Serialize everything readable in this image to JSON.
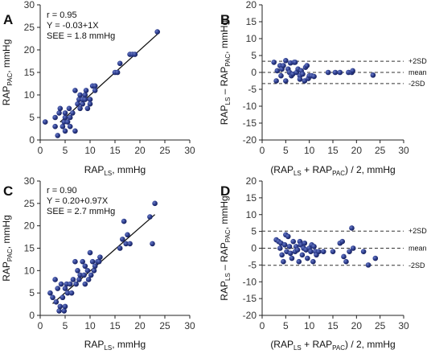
{
  "chart_data": [
    {
      "panel": "A",
      "type": "scatter",
      "xlim": [
        0,
        30
      ],
      "ylim": [
        0,
        30
      ],
      "xticks": [
        0,
        5,
        10,
        15,
        20,
        25,
        30
      ],
      "yticks": [
        0,
        5,
        10,
        15,
        20,
        25,
        30
      ],
      "xlabel": {
        "main": "RAP",
        "sub": "LS",
        "tail": ", mmHg"
      },
      "ylabel": {
        "main": "RAP",
        "sub": "PAC",
        "tail": ", mmHg"
      },
      "annotations": [
        "r = 0.95",
        "Y = -0.03+1X",
        "SEE = 1.8 mmHg"
      ],
      "regression": {
        "intercept": -0.03,
        "slope": 1.0,
        "x_range": [
          4,
          23.5
        ]
      },
      "grid": false,
      "points": [
        [
          1,
          4
        ],
        [
          3,
          3
        ],
        [
          3,
          5
        ],
        [
          3.5,
          1
        ],
        [
          3.8,
          6
        ],
        [
          4,
          7
        ],
        [
          4.5,
          3
        ],
        [
          4.8,
          4
        ],
        [
          5,
          2
        ],
        [
          5,
          5
        ],
        [
          5,
          6
        ],
        [
          5.5,
          4
        ],
        [
          5.8,
          7
        ],
        [
          6,
          3
        ],
        [
          6,
          5
        ],
        [
          6.5,
          6
        ],
        [
          7,
          2
        ],
        [
          7,
          11
        ],
        [
          7.5,
          8
        ],
        [
          7.8,
          9
        ],
        [
          8,
          7
        ],
        [
          8,
          10
        ],
        [
          8.5,
          8
        ],
        [
          8.5,
          9
        ],
        [
          9,
          9
        ],
        [
          9,
          10
        ],
        [
          9.2,
          11
        ],
        [
          9.5,
          7
        ],
        [
          10,
          9
        ],
        [
          10,
          8
        ],
        [
          10.5,
          12
        ],
        [
          11,
          12
        ],
        [
          11,
          11
        ],
        [
          15,
          15
        ],
        [
          15.5,
          15
        ],
        [
          16,
          17
        ],
        [
          18,
          19
        ],
        [
          18.5,
          19
        ],
        [
          19,
          19
        ],
        [
          23.5,
          24
        ]
      ]
    },
    {
      "panel": "B",
      "type": "scatter",
      "xlim": [
        0,
        30
      ],
      "ylim": [
        -20,
        20
      ],
      "xticks": [
        0,
        5,
        10,
        15,
        20,
        25,
        30
      ],
      "yticks": [
        -20,
        -15,
        -10,
        -5,
        0,
        5,
        10,
        15,
        20
      ],
      "xlabel": {
        "open": "(RAP",
        "sub1": "LS",
        "mid": " + RAP",
        "sub2": "PAC",
        "tail": ") / 2, mmHg"
      },
      "ylabel": {
        "a": "RAP",
        "sub1": "LS",
        "b": " – RAP",
        "sub2": "PAC",
        "tail": ", mmHg"
      },
      "reference_lines": [
        {
          "label": "+2SD",
          "y": 3.3
        },
        {
          "label": "mean",
          "y": 0
        },
        {
          "label": "-2SD",
          "y": -3.3
        }
      ],
      "grid": false,
      "points": [
        [
          2.5,
          3
        ],
        [
          3,
          -2.5
        ],
        [
          3.2,
          0.5
        ],
        [
          3.8,
          2
        ],
        [
          4,
          -1
        ],
        [
          4.2,
          1
        ],
        [
          4.5,
          2
        ],
        [
          5,
          3.5
        ],
        [
          5,
          -2.5
        ],
        [
          5.5,
          1
        ],
        [
          5.8,
          0
        ],
        [
          6,
          2.8
        ],
        [
          6.2,
          -1
        ],
        [
          6.5,
          -0.5
        ],
        [
          6.8,
          3
        ],
        [
          7,
          3
        ],
        [
          7.3,
          0
        ],
        [
          7.6,
          1
        ],
        [
          8,
          -1
        ],
        [
          8,
          -2
        ],
        [
          8.3,
          0.5
        ],
        [
          8.6,
          -0.5
        ],
        [
          9,
          -2.5
        ],
        [
          9.2,
          1.5
        ],
        [
          9.5,
          2
        ],
        [
          9.8,
          -1.8
        ],
        [
          10,
          -1
        ],
        [
          10.5,
          -1
        ],
        [
          11,
          -1.2
        ],
        [
          14,
          0
        ],
        [
          15.5,
          0
        ],
        [
          16.5,
          0
        ],
        [
          18.3,
          0
        ],
        [
          19,
          0
        ],
        [
          19.2,
          0.5
        ],
        [
          23.5,
          -0.8
        ]
      ]
    },
    {
      "panel": "C",
      "type": "scatter",
      "xlim": [
        0,
        30
      ],
      "ylim": [
        0,
        30
      ],
      "xticks": [
        0,
        5,
        10,
        15,
        20,
        25,
        30
      ],
      "yticks": [
        0,
        5,
        10,
        15,
        20,
        25,
        30
      ],
      "xlabel": {
        "main": "RAP",
        "sub": "LS",
        "tail": ", mmHg"
      },
      "ylabel": {
        "main": "RAP",
        "sub": "PAC",
        "tail": ", mmHg"
      },
      "annotations": [
        "r = 0.90",
        "Y = 0.20+0.97X",
        "SEE = 2.7 mmHg"
      ],
      "regression": {
        "intercept": 0.2,
        "slope": 0.97,
        "x_range": [
          2.5,
          23
        ]
      },
      "grid": false,
      "points": [
        [
          2,
          5
        ],
        [
          2.5,
          4
        ],
        [
          3,
          8
        ],
        [
          3.2,
          3
        ],
        [
          3.5,
          6
        ],
        [
          3.8,
          1
        ],
        [
          4,
          2
        ],
        [
          4.2,
          7
        ],
        [
          4.5,
          4
        ],
        [
          4.8,
          1
        ],
        [
          5,
          2
        ],
        [
          5,
          6
        ],
        [
          5.3,
          7
        ],
        [
          5.5,
          5
        ],
        [
          6,
          7
        ],
        [
          6.3,
          5
        ],
        [
          6.6,
          8
        ],
        [
          7,
          12
        ],
        [
          7.2,
          7
        ],
        [
          7.5,
          10
        ],
        [
          7.8,
          8
        ],
        [
          8,
          9
        ],
        [
          8.5,
          12
        ],
        [
          8.8,
          9
        ],
        [
          9,
          7
        ],
        [
          9,
          11
        ],
        [
          9.5,
          10
        ],
        [
          9.7,
          8
        ],
        [
          10,
          14
        ],
        [
          10.2,
          9
        ],
        [
          10.5,
          12
        ],
        [
          10.8,
          10
        ],
        [
          11,
          11
        ],
        [
          11.5,
          12
        ],
        [
          11.8,
          12
        ],
        [
          12,
          13
        ],
        [
          16,
          15
        ],
        [
          16.5,
          17
        ],
        [
          16.8,
          21
        ],
        [
          17.2,
          16
        ],
        [
          17.5,
          18
        ],
        [
          18,
          16
        ],
        [
          22,
          22
        ],
        [
          22.5,
          16
        ],
        [
          23,
          25
        ]
      ]
    },
    {
      "panel": "D",
      "type": "scatter",
      "xlim": [
        0,
        30
      ],
      "ylim": [
        -20,
        20
      ],
      "xticks": [
        0,
        5,
        10,
        15,
        20,
        25,
        30
      ],
      "yticks": [
        -20,
        -15,
        -10,
        -5,
        0,
        5,
        10,
        15,
        20
      ],
      "xlabel": {
        "open": "(RAP",
        "sub1": "LS",
        "mid": " + RAP",
        "sub2": "PAC",
        "tail": ") / 2, mmHg"
      },
      "ylabel": {
        "a": "RAP",
        "sub1": "LS",
        "b": " – RAP",
        "sub2": "PAC",
        "tail": ", mmHg"
      },
      "reference_lines": [
        {
          "label": "+2SD",
          "y": 5.1
        },
        {
          "label": "mean",
          "y": 0
        },
        {
          "label": "-2SD",
          "y": -5.1
        }
      ],
      "grid": false,
      "points": [
        [
          3,
          2.5
        ],
        [
          3.5,
          2
        ],
        [
          3.8,
          0
        ],
        [
          4,
          1.5
        ],
        [
          4.2,
          -2
        ],
        [
          4.5,
          -4
        ],
        [
          4.8,
          1
        ],
        [
          5,
          4
        ],
        [
          5.2,
          -1
        ],
        [
          5.5,
          3.5
        ],
        [
          5.8,
          0.5
        ],
        [
          6,
          -1.5
        ],
        [
          6.3,
          -3
        ],
        [
          6.6,
          2
        ],
        [
          7,
          -1
        ],
        [
          7.2,
          0.5
        ],
        [
          7.5,
          -0.5
        ],
        [
          7.8,
          -4
        ],
        [
          8,
          2
        ],
        [
          8.2,
          1
        ],
        [
          8.5,
          -2
        ],
        [
          8.8,
          0
        ],
        [
          9,
          1.5
        ],
        [
          9.3,
          -0.5
        ],
        [
          9.6,
          -3
        ],
        [
          10,
          0
        ],
        [
          10.3,
          -1
        ],
        [
          10.5,
          1
        ],
        [
          10.8,
          -4
        ],
        [
          11,
          0.5
        ],
        [
          11.3,
          -1
        ],
        [
          11.5,
          -2
        ],
        [
          12,
          -1
        ],
        [
          13,
          -1
        ],
        [
          15,
          -1
        ],
        [
          16.5,
          1.5
        ],
        [
          17,
          2
        ],
        [
          17.3,
          -2.5
        ],
        [
          17.8,
          -4
        ],
        [
          18.5,
          -1
        ],
        [
          19,
          6
        ],
        [
          19.3,
          0
        ],
        [
          21.5,
          -1
        ],
        [
          22.5,
          -5
        ],
        [
          24,
          -3
        ]
      ]
    }
  ]
}
